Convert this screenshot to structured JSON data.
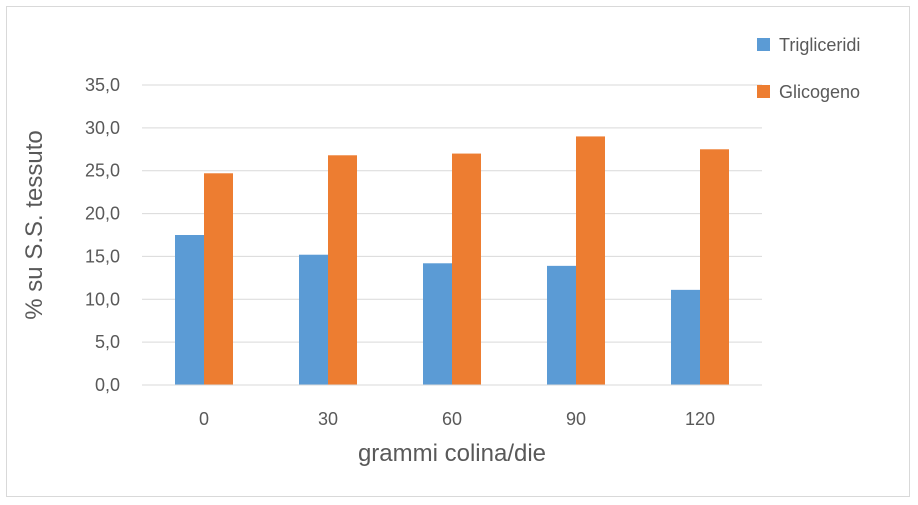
{
  "chart_data": {
    "type": "bar",
    "title": "",
    "xlabel": "grammi colina/die",
    "ylabel": "% su S.S. tessuto",
    "categories": [
      "0",
      "30",
      "60",
      "90",
      "120"
    ],
    "series": [
      {
        "name": "Trigliceridi",
        "color": "#5b9bd5",
        "values": [
          17.5,
          15.2,
          14.2,
          13.9,
          11.1
        ]
      },
      {
        "name": "Glicogeno",
        "color": "#ed7d31",
        "values": [
          24.7,
          26.8,
          27.0,
          29.0,
          27.5
        ]
      }
    ],
    "ylim": [
      0,
      35
    ],
    "yticks": [
      "0,0",
      "5,0",
      "10,0",
      "15,0",
      "20,0",
      "25,0",
      "30,0",
      "35,0"
    ],
    "grid": true,
    "legend": "top-right"
  }
}
